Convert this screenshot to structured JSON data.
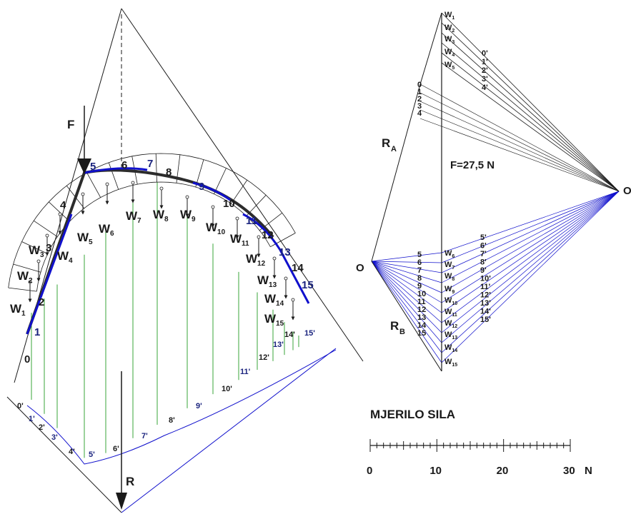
{
  "force_label": "F",
  "resultant_label": "R",
  "force_value": "F=27,5 N",
  "ra_label": "R",
  "ra_sub": "A",
  "rb_label": "R",
  "rb_sub": "B",
  "pole_left": "O",
  "pole_right": "O",
  "scale_title": "MJERILO SILA",
  "scale_ticks": [
    "0",
    "10",
    "20",
    "30"
  ],
  "scale_unit": "N",
  "weight_base": "W",
  "weight_subs": [
    "1",
    "2",
    "3",
    "4",
    "5",
    "6",
    "7",
    "8",
    "9",
    "10",
    "11",
    "12",
    "13",
    "14",
    "15"
  ],
  "arch_numbers": [
    "0",
    "1",
    "2",
    "3",
    "4",
    "5",
    "6",
    "7",
    "8",
    "9",
    "10",
    "11",
    "12",
    "13",
    "14",
    "15"
  ],
  "line_numbers_primed": [
    "0'",
    "1'",
    "2'",
    "3'",
    "4'",
    "5'",
    "6'",
    "7'",
    "8'",
    "9'",
    "10'",
    "11'",
    "12'",
    "13'",
    "14'",
    "15'"
  ],
  "polygon_upper_numbers": [
    "0",
    "1",
    "2",
    "3",
    "4"
  ],
  "polygon_upper_primed": [
    "0'",
    "1'",
    "2'",
    "3'",
    "4'"
  ],
  "polygon_lower_numbers": [
    "5",
    "6",
    "7",
    "8",
    "9",
    "10",
    "11",
    "12",
    "13",
    "14",
    "15"
  ],
  "polygon_lower_primed": [
    "5'",
    "6'",
    "7'",
    "8'",
    "9'",
    "10'",
    "11'",
    "12'",
    "13'",
    "14'",
    "15'"
  ],
  "colors": {
    "thrust_line": "#2c2c2c",
    "blue": "#1010cc",
    "green": "#3aa43a",
    "ink": "#1a1a1a"
  }
}
